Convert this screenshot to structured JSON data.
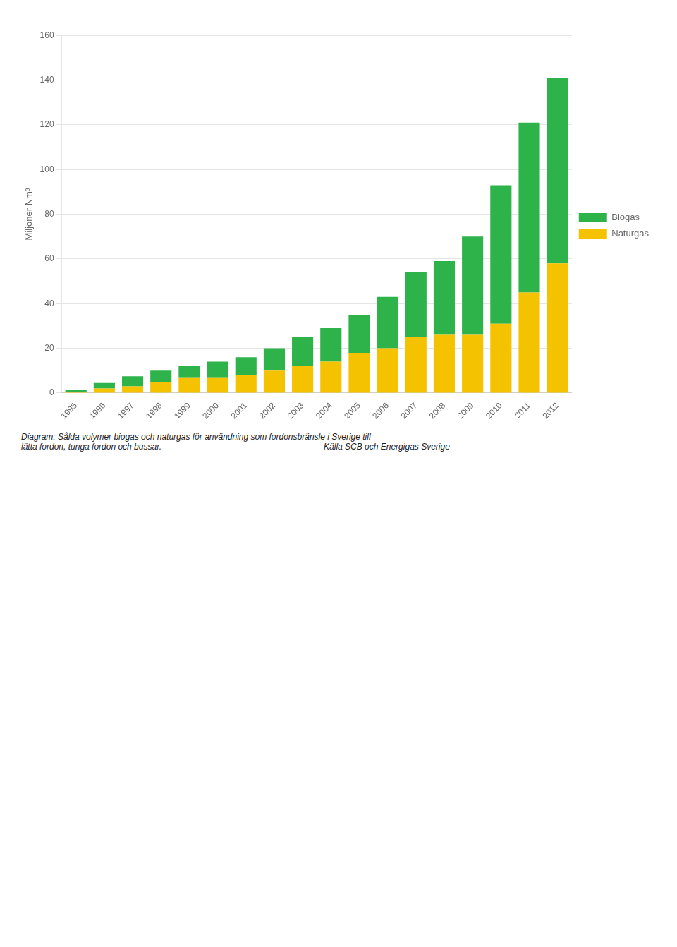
{
  "chart_data": {
    "type": "bar",
    "stacked": true,
    "ylabel": "Miljoner Nm³",
    "categories": [
      "1995",
      "1996",
      "1997",
      "1998",
      "1999",
      "2000",
      "2001",
      "2002",
      "2003",
      "2004",
      "2005",
      "2006",
      "2007",
      "2008",
      "2009",
      "2010",
      "2011",
      "2012"
    ],
    "series": [
      {
        "name": "Naturgas",
        "color": "#f5c200",
        "values": [
          0.5,
          2.0,
          3.0,
          5.0,
          7.0,
          7.0,
          8.0,
          10.0,
          12.0,
          14.0,
          18.0,
          20.0,
          25.0,
          26.0,
          26.0,
          31.0,
          45.0,
          58.0
        ]
      },
      {
        "name": "Biogas",
        "color": "#2db34a",
        "values": [
          1.0,
          2.5,
          4.5,
          5.0,
          5.0,
          7.0,
          8.0,
          10.0,
          13.0,
          15.0,
          17.0,
          23.0,
          29.0,
          33.0,
          44.0,
          62.0,
          76.0,
          83.0
        ]
      }
    ],
    "ylim": [
      0,
      160
    ],
    "yticks": [
      0,
      20,
      40,
      60,
      80,
      100,
      120,
      140,
      160
    ],
    "grid": true,
    "legend": "right",
    "annotations": [
      "Diagram: Sålda volymer biogas och naturgas för användning som fordonsbränsle i Sverige till",
      "lätta fordon, tunga fordon och bussar.                                                                     Källa SCB och Energigas Sverige"
    ]
  }
}
